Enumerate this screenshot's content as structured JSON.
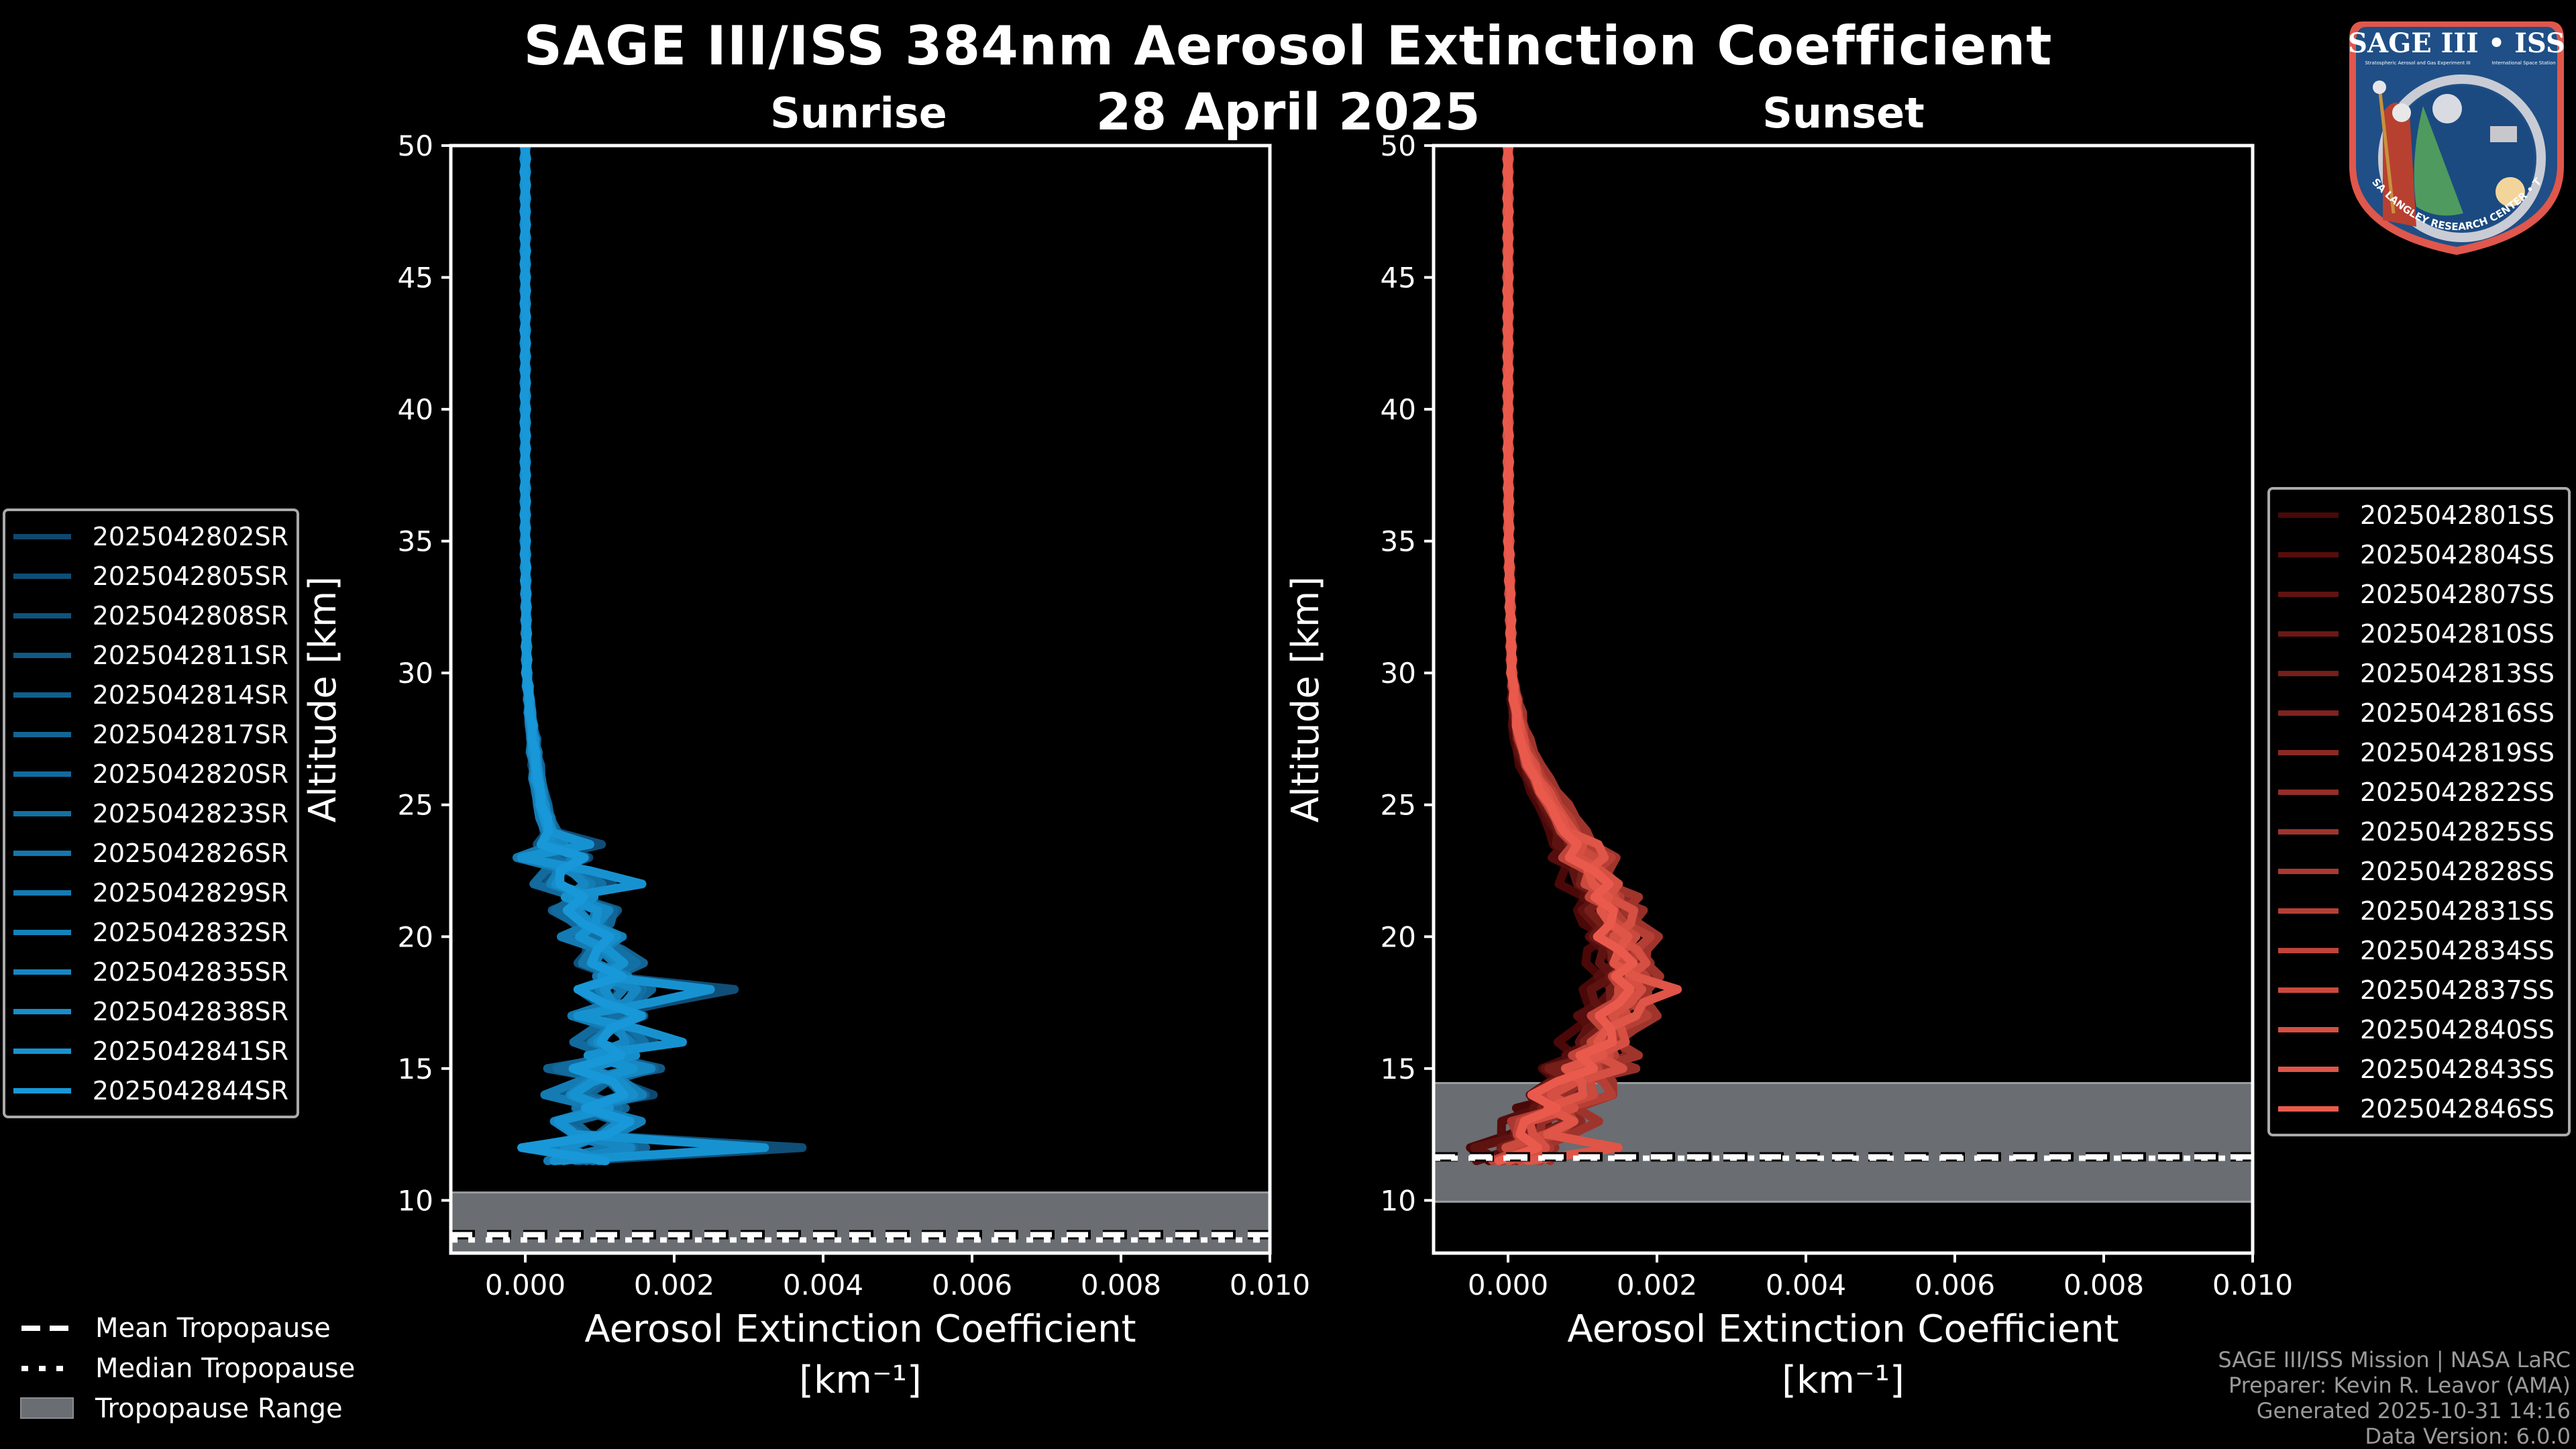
{
  "header": {
    "title": "SAGE III/ISS 384nm Aerosol Extinction Coefficient",
    "date": "28 April 2025",
    "sunrise_label": "Sunrise",
    "sunset_label": "Sunset"
  },
  "logo": {
    "top_text": "SAGE III • ISS",
    "subtitle_left": "Stratospheric Aerosol and Gas Experiment III",
    "subtitle_right": "International Space Station",
    "ring_text": "BALL • NASA LANGLEY RESEARCH CENTER • TAS-I • ESA"
  },
  "tropopause_legend": [
    {
      "label": "Mean Tropopause",
      "style": "dashed"
    },
    {
      "label": "Median Tropopause",
      "style": "dotted"
    },
    {
      "label": "Tropopause Range",
      "style": "fill"
    }
  ],
  "credits": [
    "SAGE III/ISS Mission | NASA LaRC",
    "Preparer: Kevin R. Leavor (AMA)",
    "Generated 2025-10-31 14:16",
    "Data Version: 6.0.0"
  ],
  "colors": {
    "sunrise_dark": "#0e4870",
    "sunrise_light": "#1898d8",
    "sunset_dark": "#4a0808",
    "sunset_light": "#ea5a4c",
    "tropopause_fill": "#6a6d72"
  },
  "chart_data": [
    {
      "type": "line",
      "panel": "sunrise",
      "title": "Sunrise",
      "xlabel": "Aerosol Extinction Coefficient",
      "xlabel_units": "[km⁻¹]",
      "ylabel": "Altitude [km]",
      "xlim": [
        -0.001,
        0.01
      ],
      "ylim": [
        8,
        50
      ],
      "xticks": [
        "0.000",
        "0.002",
        "0.004",
        "0.006",
        "0.008",
        "0.010"
      ],
      "xtick_values": [
        0,
        0.002,
        0.004,
        0.006,
        0.008,
        0.01
      ],
      "yticks": [
        10,
        15,
        20,
        25,
        30,
        35,
        40,
        45,
        50
      ],
      "tropopause": {
        "mean": 8.7,
        "median": 8.5,
        "range": [
          7.5,
          10.3
        ]
      },
      "legend_position": "left-outside",
      "base_profile": [
        [
          50,
          0.0
        ],
        [
          45,
          0.0
        ],
        [
          40,
          0.0
        ],
        [
          35,
          0.0
        ],
        [
          30,
          2e-05
        ],
        [
          28,
          8e-05
        ],
        [
          26,
          0.00016
        ],
        [
          25,
          0.00022
        ],
        [
          24,
          0.00032
        ],
        [
          23,
          0.00045
        ],
        [
          22,
          0.0006
        ],
        [
          21,
          0.0008
        ],
        [
          20,
          0.00095
        ],
        [
          19,
          0.0011
        ],
        [
          18,
          0.0012
        ],
        [
          17,
          0.00122
        ],
        [
          16,
          0.00115
        ],
        [
          15,
          0.0011
        ],
        [
          14,
          0.001
        ],
        [
          13,
          0.0009
        ],
        [
          12,
          0.00085
        ],
        [
          11.5,
          0.0008
        ]
      ],
      "series": [
        {
          "name": "2025042802SR",
          "shift": -0.0001,
          "noise": [
            0.0006,
            -0.0004,
            0.0008,
            -0.0005,
            0.0003,
            -0.0006,
            0.0009,
            0.0003
          ]
        },
        {
          "name": "2025042805SR",
          "shift": 5e-05,
          "noise": [
            -0.0003,
            0.0007,
            -0.0005,
            0.0004,
            -0.0008,
            0.001,
            -0.0004,
            0.0028
          ]
        },
        {
          "name": "2025042808SR",
          "shift": -5e-05,
          "noise": [
            0.0004,
            -0.0006,
            0.0005,
            -0.0007,
            0.0006,
            -0.0005,
            0.0004,
            -0.0008
          ]
        },
        {
          "name": "2025042811SR",
          "shift": 0.0001,
          "noise": [
            -0.0005,
            0.0004,
            -0.0007,
            0.0006,
            -0.0004,
            0.0005,
            -0.0006,
            0.0003
          ]
        },
        {
          "name": "2025042814SR",
          "shift": 0.0,
          "noise": [
            0.0003,
            -0.0005,
            0.0006,
            -0.0008,
            0.0005,
            -0.0003,
            0.0007,
            -0.0006
          ]
        },
        {
          "name": "2025042817SR",
          "shift": 0.00015,
          "noise": [
            -0.0004,
            0.0006,
            -0.0003,
            0.0005,
            -0.0007,
            0.0004,
            -0.0005,
            0.0006
          ]
        },
        {
          "name": "2025042820SR",
          "shift": -8e-05,
          "noise": [
            0.0005,
            -0.0003,
            0.0004,
            -0.0006,
            0.0003,
            -0.0008,
            0.0005,
            -0.0004
          ]
        },
        {
          "name": "2025042823SR",
          "shift": 0.00012,
          "noise": [
            -0.0006,
            0.0005,
            -0.0004,
            0.0003,
            -0.0005,
            0.0006,
            -0.0003,
            0.0005
          ]
        },
        {
          "name": "2025042826SR",
          "shift": 3e-05,
          "noise": [
            0.0004,
            -0.0007,
            0.0003,
            -0.0004,
            0.0006,
            -0.0005,
            0.0004,
            -0.0003
          ]
        },
        {
          "name": "2025042829SR",
          "shift": -0.00012,
          "noise": [
            -0.0003,
            0.0004,
            -0.0006,
            0.0005,
            -0.0003,
            0.0007,
            -0.0009,
            0.0004
          ]
        },
        {
          "name": "2025042832SR",
          "shift": 8e-05,
          "noise": [
            0.0006,
            -0.0004,
            0.0005,
            -0.0003,
            0.0004,
            -0.0006,
            0.0003,
            -0.0005
          ]
        },
        {
          "name": "2025042835SR",
          "shift": -2e-05,
          "noise": [
            -0.0005,
            0.0003,
            -0.0004,
            0.0006,
            -0.0005,
            0.0004,
            -0.0007,
            0.0006
          ]
        },
        {
          "name": "2025042838SR",
          "shift": 6e-05,
          "noise": [
            0.0003,
            -0.0005,
            0.0004,
            -0.0003,
            0.0007,
            -0.0004,
            0.0005,
            -0.0004
          ]
        },
        {
          "name": "2025042841SR",
          "shift": -4e-05,
          "noise": [
            -0.0004,
            0.0005,
            -0.0003,
            0.0004,
            -0.0006,
            0.0018,
            -0.0009,
            0.0024
          ]
        },
        {
          "name": "2025042844SR",
          "shift": 2e-05,
          "noise": [
            0.0005,
            -0.0004,
            0.0003,
            -0.0005,
            0.0004,
            -0.0003,
            0.0006,
            -0.0009
          ]
        }
      ]
    },
    {
      "type": "line",
      "panel": "sunset",
      "title": "Sunset",
      "xlabel": "Aerosol Extinction Coefficient",
      "xlabel_units": "[km⁻¹]",
      "ylabel": "Altitude [km]",
      "xlim": [
        -0.001,
        0.01
      ],
      "ylim": [
        8,
        50
      ],
      "xticks": [
        "0.000",
        "0.002",
        "0.004",
        "0.006",
        "0.008",
        "0.010"
      ],
      "xtick_values": [
        0,
        0.002,
        0.004,
        0.006,
        0.008,
        0.01
      ],
      "yticks": [
        10,
        15,
        20,
        25,
        30,
        35,
        40,
        45,
        50
      ],
      "tropopause": {
        "mean": 11.65,
        "median": 11.6,
        "range": [
          9.95,
          14.45
        ]
      },
      "legend_position": "right-outside",
      "base_profile": [
        [
          50,
          0.0
        ],
        [
          45,
          0.0
        ],
        [
          40,
          0.0
        ],
        [
          35,
          1e-05
        ],
        [
          30,
          5e-05
        ],
        [
          28,
          0.00012
        ],
        [
          27,
          0.0002
        ],
        [
          26,
          0.00035
        ],
        [
          25,
          0.00055
        ],
        [
          24,
          0.00075
        ],
        [
          23,
          0.00095
        ],
        [
          22,
          0.00115
        ],
        [
          21,
          0.0013
        ],
        [
          20,
          0.0014
        ],
        [
          19,
          0.0015
        ],
        [
          18,
          0.00148
        ],
        [
          17,
          0.00135
        ],
        [
          16,
          0.0012
        ],
        [
          15,
          0.00095
        ],
        [
          14,
          0.0007
        ],
        [
          13,
          0.0004
        ],
        [
          12,
          0.0001
        ],
        [
          11.5,
          -5e-05
        ]
      ],
      "series": [
        {
          "name": "2025042801SS",
          "shift": -0.0003,
          "noise": [
            0.0002,
            -0.0003,
            0.0004,
            -0.0002,
            0.0003,
            -0.0004,
            0.0002,
            -0.0003
          ]
        },
        {
          "name": "2025042804SS",
          "shift": -0.0002,
          "noise": [
            -0.0003,
            0.0002,
            -0.0002,
            0.0004,
            -0.0003,
            0.0002,
            -0.0004,
            0.0002
          ]
        },
        {
          "name": "2025042807SS",
          "shift": -0.00015,
          "noise": [
            0.0003,
            -0.0002,
            0.0003,
            -0.0003,
            0.0005,
            -0.0002,
            0.0003,
            -0.0004
          ]
        },
        {
          "name": "2025042810SS",
          "shift": -0.0001,
          "noise": [
            -0.0002,
            0.0004,
            -0.0003,
            0.0002,
            -0.0002,
            0.0004,
            -0.0002,
            0.0003
          ]
        },
        {
          "name": "2025042813SS",
          "shift": 0.0,
          "noise": [
            0.0004,
            -0.0002,
            0.0002,
            -0.0004,
            0.0003,
            -0.0003,
            0.0004,
            -0.0002
          ]
        },
        {
          "name": "2025042816SS",
          "shift": 0.0001,
          "noise": [
            -0.0003,
            0.0003,
            -0.0004,
            0.0003,
            -0.0002,
            0.0003,
            -0.0003,
            0.0004
          ]
        },
        {
          "name": "2025042819SS",
          "shift": 0.0004,
          "noise": [
            0.0002,
            -0.0004,
            0.0003,
            -0.0002,
            0.0004,
            -0.0002,
            0.0002,
            -0.0003
          ]
        },
        {
          "name": "2025042822SS",
          "shift": 0.00025,
          "noise": [
            -0.0002,
            0.0003,
            -0.0002,
            0.0005,
            -0.0003,
            0.0002,
            -0.0004,
            0.0003
          ]
        },
        {
          "name": "2025042825SS",
          "shift": 0.0005,
          "noise": [
            0.0003,
            -0.0003,
            0.0002,
            -0.0003,
            0.0004,
            -0.0004,
            0.0003,
            -0.0002
          ]
        },
        {
          "name": "2025042828SS",
          "shift": 5e-05,
          "noise": [
            -0.0004,
            0.0002,
            -0.0003,
            0.0002,
            -0.0002,
            0.0003,
            -0.0002,
            0.0004
          ]
        },
        {
          "name": "2025042831SS",
          "shift": 0.0003,
          "noise": [
            0.0002,
            -0.0002,
            0.0004,
            -0.0003,
            0.0002,
            -0.0003,
            0.0004,
            -0.0003
          ]
        },
        {
          "name": "2025042834SS",
          "shift": -5e-05,
          "noise": [
            -0.0002,
            0.0004,
            -0.0002,
            0.0003,
            -0.0004,
            0.0002,
            -0.0003,
            0.0002
          ]
        },
        {
          "name": "2025042837SS",
          "shift": 0.00015,
          "noise": [
            0.0003,
            -0.0002,
            0.0003,
            -0.0002,
            0.0003,
            -0.0004,
            0.0002,
            -0.0003
          ]
        },
        {
          "name": "2025042840SS",
          "shift": 0.0002,
          "noise": [
            -0.0003,
            0.0003,
            -0.0003,
            0.0004,
            -0.0002,
            0.0003,
            -0.0003,
            0.0002
          ]
        },
        {
          "name": "2025042843SS",
          "shift": 0.0001,
          "noise": [
            0.0004,
            -0.0003,
            0.0002,
            -0.0003,
            0.0003,
            -0.0002,
            0.0005,
            0.0013
          ]
        },
        {
          "name": "2025042846SS",
          "shift": 0.0,
          "noise": [
            -0.0002,
            0.0003,
            -0.0004,
            0.0002,
            -0.0003,
            0.0004,
            -0.0002,
            0.0003
          ]
        }
      ]
    }
  ]
}
